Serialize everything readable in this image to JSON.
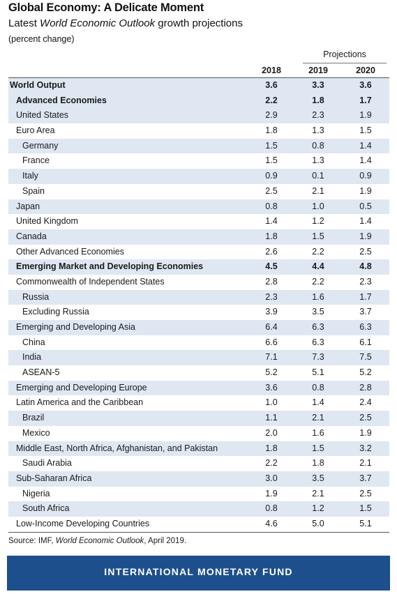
{
  "title": "Global Economy: A Delicate Moment",
  "subtitle": {
    "prefix": "Latest ",
    "italic": "World Economic Outlook",
    "suffix": " growth projections"
  },
  "unit": "(percent change)",
  "projections_label": "Projections",
  "columns": [
    "2018",
    "2019",
    "2020"
  ],
  "rows": [
    {
      "label": "World Output",
      "level": 0,
      "bold": true,
      "shade": true,
      "values": [
        "3.6",
        "3.3",
        "3.6"
      ]
    },
    {
      "label": "Advanced Economies",
      "level": 1,
      "bold": true,
      "shade": true,
      "values": [
        "2.2",
        "1.8",
        "1.7"
      ]
    },
    {
      "label": "United States",
      "level": 1,
      "bold": false,
      "shade": true,
      "values": [
        "2.9",
        "2.3",
        "1.9"
      ]
    },
    {
      "label": "Euro Area",
      "level": 1,
      "bold": false,
      "shade": false,
      "values": [
        "1.8",
        "1.3",
        "1.5"
      ]
    },
    {
      "label": "Germany",
      "level": 2,
      "bold": false,
      "shade": true,
      "values": [
        "1.5",
        "0.8",
        "1.4"
      ]
    },
    {
      "label": "France",
      "level": 2,
      "bold": false,
      "shade": false,
      "values": [
        "1.5",
        "1.3",
        "1.4"
      ]
    },
    {
      "label": "Italy",
      "level": 2,
      "bold": false,
      "shade": true,
      "values": [
        "0.9",
        "0.1",
        "0.9"
      ]
    },
    {
      "label": "Spain",
      "level": 2,
      "bold": false,
      "shade": false,
      "values": [
        "2.5",
        "2.1",
        "1.9"
      ]
    },
    {
      "label": "Japan",
      "level": 1,
      "bold": false,
      "shade": true,
      "values": [
        "0.8",
        "1.0",
        "0.5"
      ]
    },
    {
      "label": "United Kingdom",
      "level": 1,
      "bold": false,
      "shade": false,
      "values": [
        "1.4",
        "1.2",
        "1.4"
      ]
    },
    {
      "label": "Canada",
      "level": 1,
      "bold": false,
      "shade": true,
      "values": [
        "1.8",
        "1.5",
        "1.9"
      ]
    },
    {
      "label": "Other Advanced Economies",
      "level": 1,
      "bold": false,
      "shade": false,
      "values": [
        "2.6",
        "2.2",
        "2.5"
      ]
    },
    {
      "label": "Emerging Market and Developing Economies",
      "level": 1,
      "bold": true,
      "shade": true,
      "values": [
        "4.5",
        "4.4",
        "4.8"
      ]
    },
    {
      "label": "Commonwealth of Independent States",
      "level": 1,
      "bold": false,
      "shade": false,
      "values": [
        "2.8",
        "2.2",
        "2.3"
      ]
    },
    {
      "label": "Russia",
      "level": 2,
      "bold": false,
      "shade": true,
      "values": [
        "2.3",
        "1.6",
        "1.7"
      ]
    },
    {
      "label": "Excluding Russia",
      "level": 2,
      "bold": false,
      "shade": false,
      "values": [
        "3.9",
        "3.5",
        "3.7"
      ]
    },
    {
      "label": "Emerging and Developing Asia",
      "level": 1,
      "bold": false,
      "shade": true,
      "values": [
        "6.4",
        "6.3",
        "6.3"
      ]
    },
    {
      "label": "China",
      "level": 2,
      "bold": false,
      "shade": false,
      "values": [
        "6.6",
        "6.3",
        "6.1"
      ]
    },
    {
      "label": "India",
      "level": 2,
      "bold": false,
      "shade": true,
      "values": [
        "7.1",
        "7.3",
        "7.5"
      ]
    },
    {
      "label": "ASEAN-5",
      "level": 2,
      "bold": false,
      "shade": false,
      "values": [
        "5.2",
        "5.1",
        "5.2"
      ]
    },
    {
      "label": "Emerging and Developing Europe",
      "level": 1,
      "bold": false,
      "shade": true,
      "values": [
        "3.6",
        "0.8",
        "2.8"
      ]
    },
    {
      "label": "Latin America and the Caribbean",
      "level": 1,
      "bold": false,
      "shade": false,
      "values": [
        "1.0",
        "1.4",
        "2.4"
      ]
    },
    {
      "label": "Brazil",
      "level": 2,
      "bold": false,
      "shade": true,
      "values": [
        "1.1",
        "2.1",
        "2.5"
      ]
    },
    {
      "label": "Mexico",
      "level": 2,
      "bold": false,
      "shade": false,
      "values": [
        "2.0",
        "1.6",
        "1.9"
      ]
    },
    {
      "label": "Middle East, North Africa, Afghanistan, and Pakistan",
      "level": 1,
      "bold": false,
      "shade": true,
      "values": [
        "1.8",
        "1.5",
        "3.2"
      ]
    },
    {
      "label": "Saudi Arabia",
      "level": 2,
      "bold": false,
      "shade": false,
      "values": [
        "2.2",
        "1.8",
        "2.1"
      ]
    },
    {
      "label": "Sub-Saharan Africa",
      "level": 1,
      "bold": false,
      "shade": true,
      "values": [
        "3.0",
        "3.5",
        "3.7"
      ]
    },
    {
      "label": "Nigeria",
      "level": 2,
      "bold": false,
      "shade": false,
      "values": [
        "1.9",
        "2.1",
        "2.5"
      ]
    },
    {
      "label": "South Africa",
      "level": 2,
      "bold": false,
      "shade": true,
      "values": [
        "0.8",
        "1.2",
        "1.5"
      ]
    },
    {
      "label": "Low-Income Developing Countries",
      "level": 1,
      "bold": false,
      "shade": false,
      "values": [
        "4.6",
        "5.0",
        "5.1"
      ]
    }
  ],
  "source": {
    "prefix": "Source: IMF, ",
    "italic": "World Economic Outlook",
    "suffix": ", April 2019."
  },
  "footer": "INTERNATIONAL MONETARY FUND",
  "colors": {
    "row_shade": "#dfe7f2",
    "footer_bg": "#1d4f8c",
    "footer_text": "#ffffff"
  }
}
